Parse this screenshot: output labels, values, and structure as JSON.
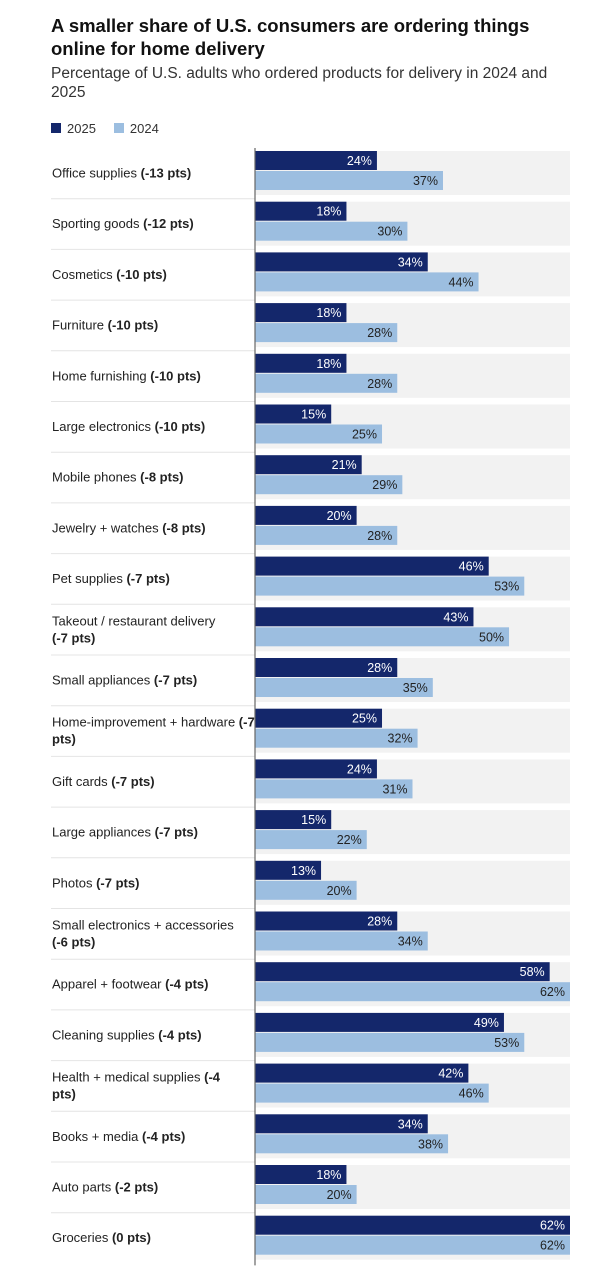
{
  "title": "A smaller share of U.S. consumers are ordering things online for home delivery",
  "subtitle": "Percentage of U.S. adults who ordered products for delivery in 2024 and 2025",
  "colors": {
    "series_2025": "#14276b",
    "series_2024": "#9cbee0",
    "track": "#f2f2f2",
    "divider": "#e4e4e4",
    "axis": "#666666"
  },
  "legend": [
    {
      "label": "2025",
      "color": "#14276b"
    },
    {
      "label": "2024",
      "color": "#9cbee0"
    }
  ],
  "chart_data": {
    "type": "bar",
    "orientation": "horizontal",
    "xlim": [
      0,
      62
    ],
    "grid": false,
    "legend_position": "top-left",
    "categories": [
      {
        "name": "Office supplies",
        "change": "(-13 pts)"
      },
      {
        "name": "Sporting goods",
        "change": "(-12 pts)"
      },
      {
        "name": "Cosmetics",
        "change": "(-10 pts)"
      },
      {
        "name": "Furniture",
        "change": "(-10 pts)"
      },
      {
        "name": "Home furnishing",
        "change": "(-10 pts)"
      },
      {
        "name": "Large electronics",
        "change": "(-10 pts)"
      },
      {
        "name": "Mobile phones",
        "change": "(-8 pts)"
      },
      {
        "name": "Jewelry + watches",
        "change": "(-8 pts)"
      },
      {
        "name": "Pet supplies",
        "change": "(-7 pts)"
      },
      {
        "name": "Takeout / restaurant delivery",
        "change": "(-7 pts)"
      },
      {
        "name": "Small appliances",
        "change": "(-7 pts)"
      },
      {
        "name": "Home-improvement + hardware",
        "change": "(-7 pts)"
      },
      {
        "name": "Gift cards",
        "change": "(-7 pts)"
      },
      {
        "name": "Large appliances",
        "change": "(-7 pts)"
      },
      {
        "name": "Photos",
        "change": "(-7 pts)"
      },
      {
        "name": "Small electronics + accessories",
        "change": "(-6 pts)"
      },
      {
        "name": "Apparel + footwear",
        "change": "(-4 pts)"
      },
      {
        "name": "Cleaning supplies",
        "change": "(-4 pts)"
      },
      {
        "name": "Health + medical supplies",
        "change": "(-4 pts)"
      },
      {
        "name": "Books + media",
        "change": "(-4 pts)"
      },
      {
        "name": "Auto parts",
        "change": "(-2 pts)"
      },
      {
        "name": "Groceries",
        "change": "(0 pts)"
      }
    ],
    "series": [
      {
        "name": "2025",
        "values": [
          24,
          18,
          34,
          18,
          18,
          15,
          21,
          20,
          46,
          43,
          28,
          25,
          24,
          15,
          13,
          28,
          58,
          49,
          42,
          34,
          18,
          62
        ]
      },
      {
        "name": "2024",
        "values": [
          37,
          30,
          44,
          28,
          28,
          25,
          29,
          28,
          53,
          50,
          35,
          32,
          31,
          22,
          20,
          34,
          62,
          53,
          46,
          38,
          20,
          62
        ]
      }
    ],
    "value_suffix": "%"
  }
}
